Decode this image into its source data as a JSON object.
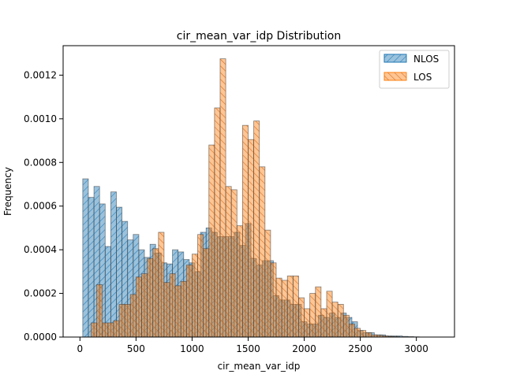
{
  "chart_data": {
    "type": "bar",
    "title": "cir_mean_var_idp Distribution",
    "xlabel": "cir_mean_var_idp",
    "ylabel": "Frequency",
    "xlim": [
      -150,
      3340
    ],
    "ylim": [
      0,
      0.001335
    ],
    "xticks": [
      0,
      500,
      1000,
      1500,
      2000,
      2500,
      3000
    ],
    "yticks": [
      0.0,
      0.0002,
      0.0004,
      0.0006,
      0.0008,
      0.001,
      0.0012
    ],
    "ytick_labels": [
      "0.0000",
      "0.0002",
      "0.0004",
      "0.0006",
      "0.0008",
      "0.0010",
      "0.0012"
    ],
    "legend_position": "top-right",
    "bin_width": 50,
    "series": [
      {
        "name": "NLOS",
        "color": "#1f77b4",
        "hatch": "////",
        "x_start": 25,
        "values": [
          0.000725,
          0.00064,
          0.00069,
          0.00061,
          0.000415,
          0.000665,
          0.000595,
          0.00053,
          0.000445,
          0.00047,
          0.0004,
          0.000365,
          0.000425,
          0.000385,
          0.00034,
          0.000335,
          0.0004,
          0.00039,
          0.000355,
          0.00034,
          0.0003,
          0.00048,
          0.0005,
          0.00048,
          0.00046,
          0.00046,
          0.00046,
          0.00048,
          0.00042,
          0.00052,
          0.00036,
          0.00033,
          0.00035,
          0.00035,
          0.00019,
          0.00017,
          0.00017,
          0.00015,
          0.00015,
          7e-05,
          6e-05,
          6e-05,
          0.0001,
          9e-05,
          0.00011,
          9e-05,
          0.00011,
          9e-05,
          7e-05,
          3e-05,
          2e-05,
          2e-05,
          1e-05,
          1e-05,
          5e-06,
          5e-06,
          5e-06,
          3e-06,
          2e-06,
          1e-06
        ]
      },
      {
        "name": "LOS",
        "color": "#ff7f0e",
        "hatch": "\\\\",
        "x_start": 100,
        "values": [
          6.5e-05,
          0.00024,
          6.5e-05,
          6.5e-05,
          7.5e-05,
          0.00015,
          0.00015,
          0.000195,
          0.000275,
          0.00029,
          0.00036,
          0.000405,
          0.00048,
          0.00025,
          0.00029,
          0.000235,
          0.000255,
          0.00033,
          0.00038,
          0.00047,
          0.000405,
          0.00088,
          0.00105,
          0.001275,
          0.00069,
          0.000675,
          0.00051,
          0.00097,
          0.000905,
          0.00099,
          0.00078,
          0.00049,
          0.00034,
          0.00027,
          0.00026,
          0.00028,
          0.00028,
          0.00018,
          0.00013,
          0.0002,
          0.00023,
          0.00013,
          0.00021,
          0.00016,
          0.00015,
          0.0001,
          6e-05,
          4e-05,
          3e-05,
          2e-05,
          1e-05,
          8e-06,
          5e-06,
          3e-06,
          2e-06
        ]
      }
    ]
  }
}
